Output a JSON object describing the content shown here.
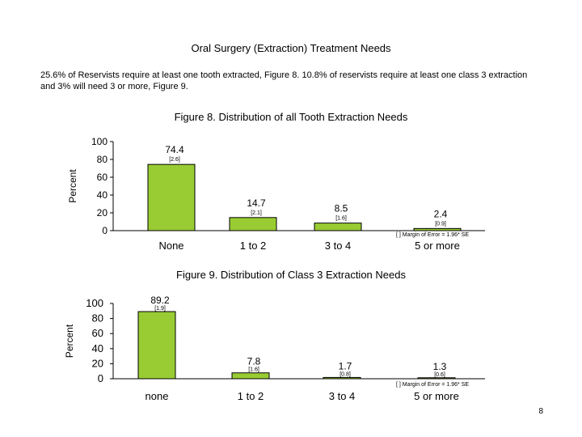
{
  "page": {
    "heading": "Oral Surgery (Extraction) Treatment Needs",
    "intro": "25.6% of Reservists require at least one tooth extracted, Figure 8.  10.8% of reservists require at least one class 3 extraction and 3% will need 3 or more, Figure 9.",
    "page_number": "8"
  },
  "colors": {
    "bar_fill": "#99cc33",
    "bar_stroke": "#000000",
    "axis": "#000000"
  },
  "chart_data": [
    {
      "type": "bar",
      "title": "Figure 8.  Distribution of all Tooth Extraction Needs",
      "ylabel": "Percent",
      "xlabel": "",
      "ylim": [
        0,
        100
      ],
      "yticks": [
        100,
        80,
        60,
        40,
        20,
        0
      ],
      "grid": false,
      "categories": [
        "None",
        "1 to 2",
        "3 to 4",
        "5 or more"
      ],
      "values": [
        74.4,
        14.7,
        8.5,
        2.4
      ],
      "value_labels": [
        "74.4",
        "14.7",
        "8.5",
        "2.4"
      ],
      "margins": [
        "[2.6]",
        "[2.1]",
        "[1.6]",
        "[0.9]"
      ],
      "note": "[ ]  Margin of Error = 1.96* SE"
    },
    {
      "type": "bar",
      "title": "Figure 9.  Distribution of Class 3 Extraction Needs",
      "ylabel": "Percent",
      "xlabel": "",
      "ylim": [
        0,
        100
      ],
      "yticks": [
        100,
        80,
        60,
        40,
        20,
        0
      ],
      "grid": false,
      "categories": [
        "none",
        "1 to 2",
        "3 to 4",
        "5 or more"
      ],
      "values": [
        89.2,
        7.8,
        1.7,
        1.3
      ],
      "value_labels": [
        "89.2",
        "7.8",
        "1.7",
        "1.3"
      ],
      "margins": [
        "[1.9]",
        "[1.6]",
        "[0.8]",
        "[0.6]"
      ],
      "note": "[ ]  Margin of Error = 1.96* SE"
    }
  ]
}
